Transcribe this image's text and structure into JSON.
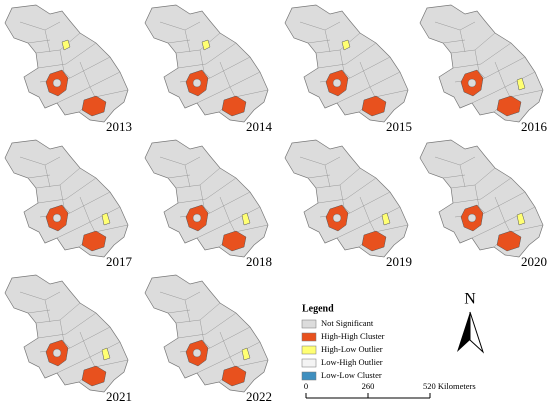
{
  "panels": [
    {
      "year": "2013"
    },
    {
      "year": "2014"
    },
    {
      "year": "2015"
    },
    {
      "year": "2016"
    },
    {
      "year": "2017"
    },
    {
      "year": "2018"
    },
    {
      "year": "2019"
    },
    {
      "year": "2020"
    },
    {
      "year": "2021"
    },
    {
      "year": "2022"
    }
  ],
  "legend": {
    "title": "Legend",
    "items": [
      {
        "label": "Not Significant",
        "color": "#dcdcdc"
      },
      {
        "label": "High-High Cluster",
        "color": "#e8511e"
      },
      {
        "label": "High-Low Outlier",
        "color": "#ffff73"
      },
      {
        "label": "Low-High Outlier",
        "color": "#f4f4f4"
      },
      {
        "label": "Low-Low Cluster",
        "color": "#3f8fbf"
      }
    ]
  },
  "scale_bar": {
    "labels": [
      "0",
      "260",
      "520 Kilometers"
    ]
  },
  "north_arrow": {
    "label": "N"
  }
}
